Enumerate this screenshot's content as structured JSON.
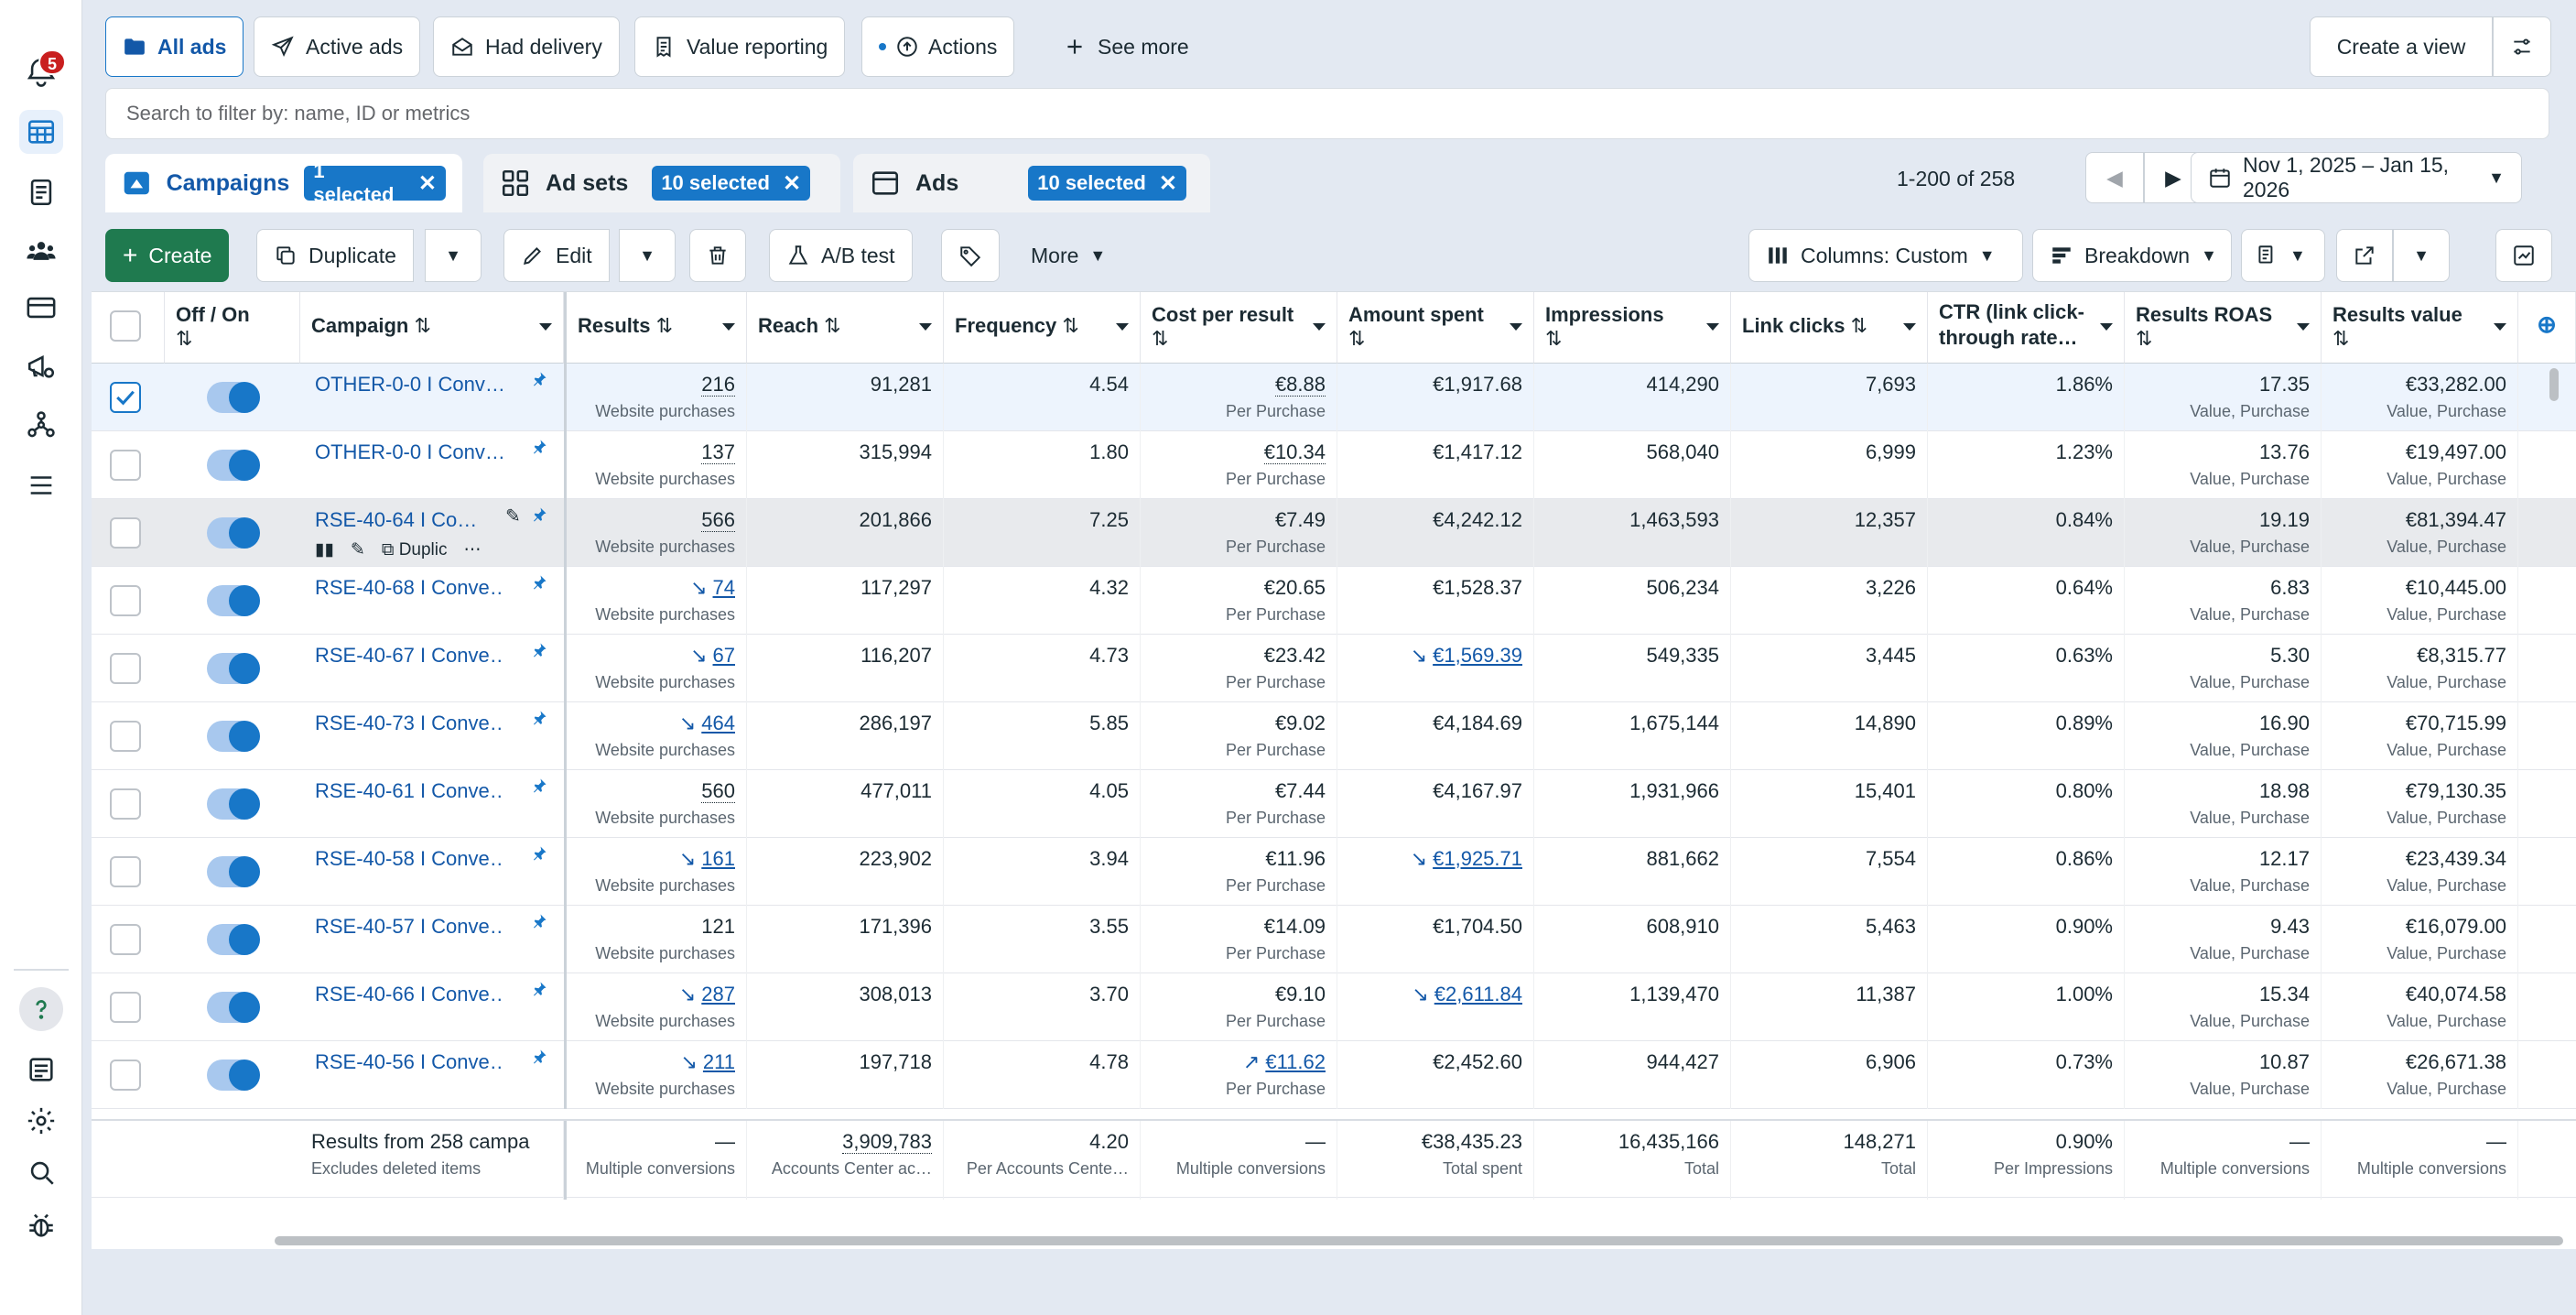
{
  "rail": {
    "notif_count": "5"
  },
  "filters": {
    "all_ads": "All ads",
    "active_ads": "Active ads",
    "had_delivery": "Had delivery",
    "value_reporting": "Value reporting",
    "actions": "Actions",
    "see_more": "See more",
    "create_view": "Create a view",
    "search_placeholder": "Search to filter by: name, ID or metrics"
  },
  "levels": {
    "campaigns": "Campaigns",
    "campaigns_sel": "1 selected",
    "adsets": "Ad sets",
    "adsets_sel": "10 selected",
    "ads": "Ads",
    "ads_sel": "10 selected"
  },
  "pagination": "1-200 of 258",
  "date_range": "Nov 1, 2025 – Jan 15, 2026",
  "toolbar": {
    "create": "Create",
    "duplicate": "Duplicate",
    "edit": "Edit",
    "ab_test": "A/B test",
    "more": "More",
    "columns": "Columns: Custom",
    "breakdown": "Breakdown"
  },
  "headers": {
    "offon": "Off / On",
    "campaign": "Campaign",
    "results": "Results",
    "reach": "Reach",
    "frequency": "Frequency",
    "cpr": "Cost per result",
    "spent": "Amount spent",
    "impressions": "Impressions",
    "clicks": "Link clicks",
    "ctr": "CTR (link click-through rate…",
    "roas": "Results ROAS",
    "value": "Results value"
  },
  "rows": [
    {
      "name": "OTHER-0-0 I Conv…",
      "results": "216",
      "results_sub": "Website purchases",
      "reach": "91,281",
      "freq": "4.54",
      "cpr": "€8.88",
      "cpr_sub": "Per Purchase",
      "spent": "€1,917.68",
      "impr": "414,290",
      "clicks": "7,693",
      "ctr": "1.86%",
      "roas": "17.35",
      "roas_sub": "Value, Purchase",
      "value": "€33,282.00",
      "value_sub": "Value, Purchase"
    },
    {
      "name": "OTHER-0-0 I Conv…",
      "results": "137",
      "results_sub": "Website purchases",
      "reach": "315,994",
      "freq": "1.80",
      "cpr": "€10.34",
      "cpr_sub": "Per Purchase",
      "spent": "€1,417.12",
      "impr": "568,040",
      "clicks": "6,999",
      "ctr": "1.23%",
      "roas": "13.76",
      "roas_sub": "Value, Purchase",
      "value": "€19,497.00",
      "value_sub": "Value, Purchase"
    },
    {
      "name": "RSE-40-64 I Co…",
      "results": "566",
      "results_sub": "Website purchases",
      "reach": "201,866",
      "freq": "7.25",
      "cpr": "€7.49",
      "cpr_sub": "Per Purchase",
      "spent": "€4,242.12",
      "impr": "1,463,593",
      "clicks": "12,357",
      "ctr": "0.84%",
      "roas": "19.19",
      "roas_sub": "Value, Purchase",
      "value": "€81,394.47",
      "value_sub": "Value, Purchase"
    },
    {
      "name": "RSE-40-68 I Conve…",
      "results": "74",
      "results_sub": "Website purchases",
      "reach": "117,297",
      "freq": "4.32",
      "cpr": "€20.65",
      "cpr_sub": "Per Purchase",
      "spent": "€1,528.37",
      "impr": "506,234",
      "clicks": "3,226",
      "ctr": "0.64%",
      "roas": "6.83",
      "roas_sub": "Value, Purchase",
      "value": "€10,445.00",
      "value_sub": "Value, Purchase"
    },
    {
      "name": "RSE-40-67 I Conve…",
      "results": "67",
      "results_sub": "Website purchases",
      "reach": "116,207",
      "freq": "4.73",
      "cpr": "€23.42",
      "cpr_sub": "Per Purchase",
      "spent": "€1,569.39",
      "impr": "549,335",
      "clicks": "3,445",
      "ctr": "0.63%",
      "roas": "5.30",
      "roas_sub": "Value, Purchase",
      "value": "€8,315.77",
      "value_sub": "Value, Purchase"
    },
    {
      "name": "RSE-40-73 I Conve…",
      "results": "464",
      "results_sub": "Website purchases",
      "reach": "286,197",
      "freq": "5.85",
      "cpr": "€9.02",
      "cpr_sub": "Per Purchase",
      "spent": "€4,184.69",
      "impr": "1,675,144",
      "clicks": "14,890",
      "ctr": "0.89%",
      "roas": "16.90",
      "roas_sub": "Value, Purchase",
      "value": "€70,715.99",
      "value_sub": "Value, Purchase"
    },
    {
      "name": "RSE-40-61 I Conve…",
      "results": "560",
      "results_sub": "Website purchases",
      "reach": "477,011",
      "freq": "4.05",
      "cpr": "€7.44",
      "cpr_sub": "Per Purchase",
      "spent": "€4,167.97",
      "impr": "1,931,966",
      "clicks": "15,401",
      "ctr": "0.80%",
      "roas": "18.98",
      "roas_sub": "Value, Purchase",
      "value": "€79,130.35",
      "value_sub": "Value, Purchase"
    },
    {
      "name": "RSE-40-58 I Conve…",
      "results": "161",
      "results_sub": "Website purchases",
      "reach": "223,902",
      "freq": "3.94",
      "cpr": "€11.96",
      "cpr_sub": "Per Purchase",
      "spent": "€1,925.71",
      "impr": "881,662",
      "clicks": "7,554",
      "ctr": "0.86%",
      "roas": "12.17",
      "roas_sub": "Value, Purchase",
      "value": "€23,439.34",
      "value_sub": "Value, Purchase"
    },
    {
      "name": "RSE-40-57 I Conve…",
      "results": "121",
      "results_sub": "Website purchases",
      "reach": "171,396",
      "freq": "3.55",
      "cpr": "€14.09",
      "cpr_sub": "Per Purchase",
      "spent": "€1,704.50",
      "impr": "608,910",
      "clicks": "5,463",
      "ctr": "0.90%",
      "roas": "9.43",
      "roas_sub": "Value, Purchase",
      "value": "€16,079.00",
      "value_sub": "Value, Purchase"
    },
    {
      "name": "RSE-40-66 I Conve…",
      "results": "287",
      "results_sub": "Website purchases",
      "reach": "308,013",
      "freq": "3.70",
      "cpr": "€9.10",
      "cpr_sub": "Per Purchase",
      "spent": "€2,611.84",
      "impr": "1,139,470",
      "clicks": "11,387",
      "ctr": "1.00%",
      "roas": "15.34",
      "roas_sub": "Value, Purchase",
      "value": "€40,074.58",
      "value_sub": "Value, Purchase"
    },
    {
      "name": "RSE-40-56 I Conve…",
      "results": "211",
      "results_sub": "Website purchases",
      "reach": "197,718",
      "freq": "4.78",
      "cpr": "€11.62",
      "cpr_sub": "Per Purchase",
      "spent": "€2,452.60",
      "impr": "944,427",
      "clicks": "6,906",
      "ctr": "0.73%",
      "roas": "10.87",
      "roas_sub": "Value, Purchase",
      "value": "€26,671.38",
      "value_sub": "Value, Purchase"
    }
  ],
  "row_hover_actions": {
    "duplicate": "Duplic"
  },
  "footer": {
    "label": "Results from 258 campa",
    "label_sub": "Excludes deleted items",
    "results": "—",
    "results_sub": "Multiple conversions",
    "reach": "3,909,783",
    "reach_sub": "Accounts Center ac…",
    "freq": "4.20",
    "freq_sub": "Per Accounts Cente…",
    "cpr": "—",
    "cpr_sub": "Multiple conversions",
    "spent": "€38,435.23",
    "spent_sub": "Total spent",
    "impr": "16,435,166",
    "impr_sub": "Total",
    "clicks": "148,271",
    "clicks_sub": "Total",
    "ctr": "0.90%",
    "ctr_sub": "Per Impressions",
    "roas": "—",
    "roas_sub": "Multiple conversions",
    "value": "—",
    "value_sub": "Multiple conversions"
  },
  "colors": {
    "accent": "#1877c8",
    "badge": "#c91f1f",
    "create": "#1f7a4f"
  }
}
